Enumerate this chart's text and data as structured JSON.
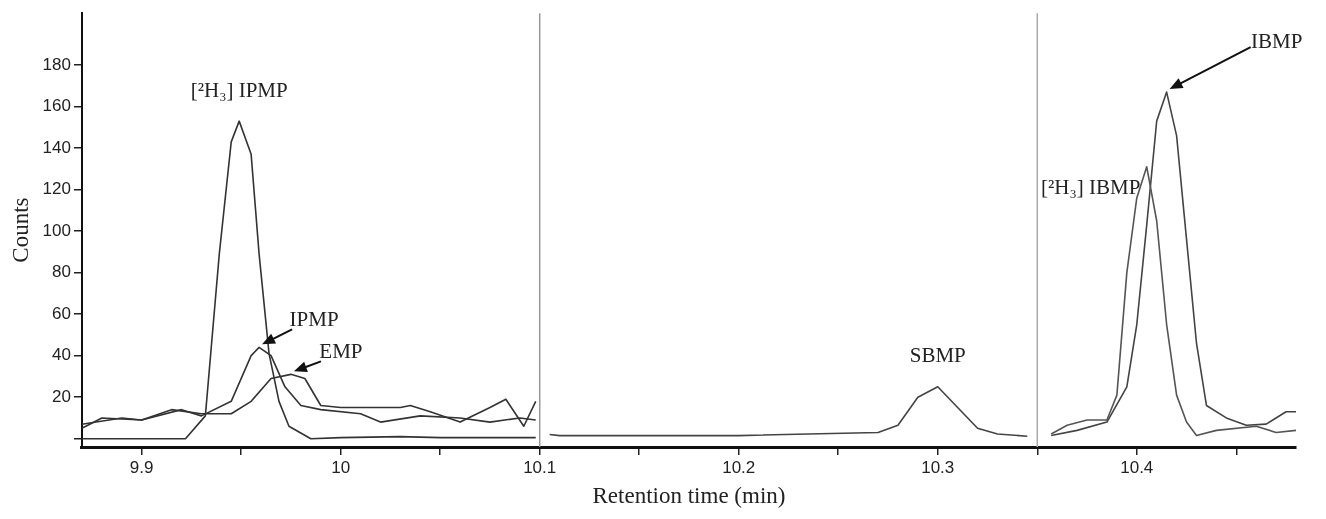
{
  "chart_data": {
    "type": "line",
    "xlabel": "Retention time (min)",
    "ylabel": "Counts",
    "xlim": [
      9.87,
      10.48
    ],
    "ylim": [
      -4,
      205
    ],
    "xticks": [
      9.9,
      {
        "value": 9.95,
        "label": null
      },
      10,
      {
        "value": 10.05,
        "label": null
      },
      10.1,
      {
        "value": 10.15,
        "label": null
      },
      10.2,
      {
        "value": 10.25,
        "label": null
      },
      10.3,
      {
        "value": 10.35,
        "label": null
      },
      10.4,
      {
        "value": 10.45,
        "label": null
      }
    ],
    "yticks": [
      {
        "value": 0,
        "label": null
      },
      20,
      40,
      60,
      80,
      100,
      120,
      140,
      160,
      180
    ],
    "grid": false,
    "series": [
      {
        "name": "[²H₃] IPMP",
        "color": "#333333",
        "x": [
          9.87,
          9.9,
          9.922,
          9.932,
          9.939,
          9.945,
          9.949,
          9.955,
          9.959,
          9.964,
          9.969,
          9.974,
          9.985,
          10.0,
          10.03,
          10.05,
          10.098
        ],
        "values": [
          0,
          0,
          0,
          11,
          89,
          143,
          153,
          137,
          89,
          41,
          18,
          6,
          0,
          0.5,
          1,
          0.5,
          0.5
        ]
      },
      {
        "name": "IPMP",
        "color": "#333333",
        "x": [
          9.87,
          9.89,
          9.9,
          9.92,
          9.93,
          9.945,
          9.955,
          9.959,
          9.965,
          9.972,
          9.98,
          9.99,
          10.01,
          10.02,
          10.04,
          10.06,
          10.075,
          10.09,
          10.098
        ],
        "values": [
          7,
          10,
          9,
          14,
          11,
          18,
          40,
          44,
          40,
          25,
          16,
          14,
          12,
          8,
          11,
          10,
          8,
          10,
          9
        ]
      },
      {
        "name": "EMP",
        "color": "#333333",
        "x": [
          9.87,
          9.88,
          9.9,
          9.915,
          9.93,
          9.945,
          9.955,
          9.965,
          9.975,
          9.982,
          9.99,
          10.0,
          10.03,
          10.035,
          10.045,
          10.06,
          10.075,
          10.083,
          10.092,
          10.098
        ],
        "values": [
          5,
          10,
          9,
          14,
          12,
          12,
          18,
          29,
          31,
          29,
          16,
          15,
          15,
          16,
          13,
          8,
          15,
          19,
          6,
          18
        ]
      },
      {
        "name": "SBMP",
        "color": "#444444",
        "x": [
          10.105,
          10.11,
          10.2,
          10.27,
          10.28,
          10.29,
          10.3,
          10.31,
          10.32,
          10.33,
          10.345
        ],
        "values": [
          2,
          1.5,
          1.5,
          3,
          6.5,
          20,
          25,
          15,
          5,
          2.3,
          1.2
        ]
      },
      {
        "name": "[²H₃] IBMP",
        "color": "#555555",
        "x": [
          10.357,
          10.365,
          10.375,
          10.385,
          10.39,
          10.395,
          10.4,
          10.405,
          10.41,
          10.415,
          10.42,
          10.425,
          10.43,
          10.44,
          10.46,
          10.47,
          10.48
        ],
        "values": [
          2.3,
          6.5,
          9,
          9,
          21,
          80,
          116,
          131,
          105,
          55,
          21,
          8,
          1.5,
          4,
          6,
          3,
          4
        ]
      },
      {
        "name": "IBMP",
        "color": "#444444",
        "x": [
          10.357,
          10.37,
          10.385,
          10.395,
          10.4,
          10.405,
          10.41,
          10.415,
          10.42,
          10.425,
          10.43,
          10.435,
          10.445,
          10.455,
          10.465,
          10.475,
          10.48
        ],
        "values": [
          1.5,
          4,
          8,
          25,
          55,
          103,
          153,
          167,
          146,
          96,
          46,
          16,
          10,
          6.5,
          7,
          13,
          13
        ]
      }
    ],
    "ref_lines": [
      {
        "axis": "x",
        "value": 10.1,
        "color": "#999999"
      },
      {
        "axis": "x",
        "value": 10.35,
        "color": "#aaaaaa"
      }
    ]
  }
}
